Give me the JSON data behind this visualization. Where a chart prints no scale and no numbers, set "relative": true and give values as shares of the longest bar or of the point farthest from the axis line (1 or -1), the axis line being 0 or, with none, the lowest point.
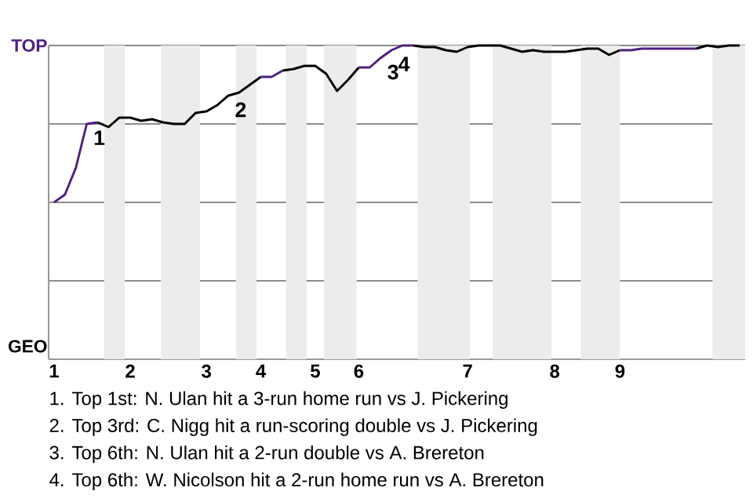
{
  "chart_data": {
    "type": "line",
    "relative": true,
    "categories": [
      "1",
      null,
      null,
      null,
      null,
      null,
      null,
      "2",
      null,
      null,
      null,
      null,
      null,
      null,
      "3",
      null,
      null,
      null,
      null,
      "4",
      null,
      null,
      null,
      null,
      "5",
      null,
      null,
      null,
      "6",
      null,
      null,
      null,
      null,
      null,
      null,
      null,
      null,
      null,
      "7",
      null,
      null,
      null,
      null,
      null,
      null,
      null,
      "8",
      null,
      null,
      null,
      null,
      null,
      "9",
      null,
      null,
      null,
      null,
      null,
      null,
      null,
      null,
      null,
      null,
      null
    ],
    "series": [
      {
        "color": "#4f1f82",
        "values": [
          0.5,
          0.525,
          0.61,
          0.75,
          0.755,
          null,
          null,
          null,
          null,
          null,
          null,
          null,
          null,
          null,
          null,
          null,
          null,
          null,
          null,
          0.9,
          0.9,
          0.92,
          null,
          null,
          null,
          null,
          null,
          null,
          0.93,
          0.93,
          0.96,
          0.985,
          1,
          1,
          null,
          null,
          null,
          null,
          null,
          null,
          null,
          null,
          null,
          null,
          null,
          null,
          null,
          null,
          null,
          null,
          null,
          null,
          0.985,
          0.985,
          0.99,
          0.99,
          0.99,
          0.99,
          0.99,
          0.99,
          null,
          null,
          null,
          null
        ]
      },
      {
        "color": "#000000",
        "values": [
          null,
          null,
          null,
          null,
          0.755,
          0.74,
          0.77,
          0.77,
          0.76,
          0.765,
          0.755,
          0.75,
          0.75,
          0.785,
          0.79,
          0.81,
          0.84,
          0.85,
          0.875,
          0.9,
          null,
          0.92,
          0.925,
          0.935,
          0.935,
          0.91,
          0.855,
          0.89,
          0.93,
          null,
          null,
          null,
          null,
          1,
          0.995,
          0.995,
          0.985,
          0.98,
          0.995,
          1,
          1,
          1,
          0.99,
          0.98,
          0.985,
          0.98,
          0.98,
          0.98,
          0.985,
          0.99,
          0.99,
          0.97,
          0.985,
          null,
          null,
          null,
          null,
          null,
          null,
          0.99,
          1,
          0.995,
          1,
          1
        ]
      }
    ],
    "grid": "y",
    "annotations": [
      "TOP",
      "GEO",
      {
        "text": "1",
        "y": 0.75
      },
      {
        "text": "2",
        "y": 0.84
      },
      {
        "text": "3",
        "y": 0.96
      },
      {
        "text": "4",
        "y": 0.985
      },
      "1. Top 1st: N. Ulan hit a 3-run home run vs J. Pickering",
      "2. Top 3rd: C. Nigg hit a run-scoring double vs J. Pickering",
      "3. Top 6th: N. Ulan hit a 2-run double vs A. Brereton",
      "4. Top 6th: W. Nicolson hit a 2-run home run vs A. Brereton"
    ]
  }
}
